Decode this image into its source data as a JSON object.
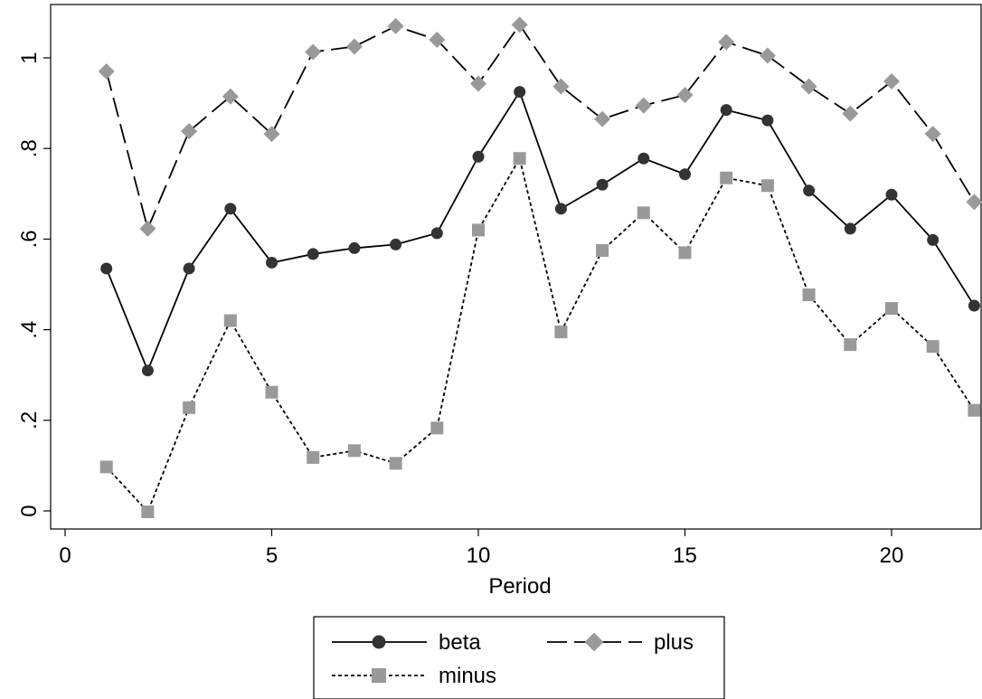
{
  "chart_data": {
    "type": "line",
    "xlabel": "Period",
    "ylabel": "",
    "xlim": [
      0,
      22
    ],
    "ylim": [
      -0.02,
      1.1
    ],
    "xticks": [
      0,
      5,
      10,
      15,
      20
    ],
    "xtick_labels": [
      "0",
      "5",
      "10",
      "15",
      "20"
    ],
    "yticks": [
      0,
      0.2,
      0.4,
      0.6,
      0.8,
      1
    ],
    "ytick_labels": [
      "0",
      ".2",
      ".4",
      ".6",
      ".8",
      "1"
    ],
    "grid": false,
    "legend_position": "bottom",
    "x": [
      1,
      2,
      3,
      4,
      5,
      6,
      7,
      8,
      9,
      10,
      11,
      12,
      13,
      14,
      15,
      16,
      17,
      18,
      19,
      20,
      21,
      22
    ],
    "series": [
      {
        "name": "beta",
        "color": "#333333",
        "line_style": "solid",
        "marker": "circle",
        "values": [
          0.535,
          0.31,
          0.535,
          0.667,
          0.548,
          0.567,
          0.58,
          0.588,
          0.613,
          0.782,
          0.925,
          0.667,
          0.72,
          0.778,
          0.743,
          0.885,
          0.862,
          0.707,
          0.623,
          0.698,
          0.598,
          0.453
        ]
      },
      {
        "name": "plus",
        "color": "#999999",
        "line_style": "dashed",
        "marker": "diamond",
        "values": [
          0.97,
          0.623,
          0.838,
          0.915,
          0.832,
          1.013,
          1.025,
          1.07,
          1.04,
          0.943,
          1.073,
          0.937,
          0.865,
          0.895,
          0.918,
          1.035,
          1.005,
          0.937,
          0.877,
          0.948,
          0.832,
          0.682
        ]
      },
      {
        "name": "minus",
        "color": "#999999",
        "line_style": "dotted",
        "marker": "square",
        "values": [
          0.097,
          -0.002,
          0.228,
          0.42,
          0.262,
          0.118,
          0.133,
          0.105,
          0.183,
          0.62,
          0.778,
          0.395,
          0.575,
          0.658,
          0.57,
          0.735,
          0.718,
          0.477,
          0.367,
          0.447,
          0.363,
          0.222
        ]
      }
    ]
  }
}
